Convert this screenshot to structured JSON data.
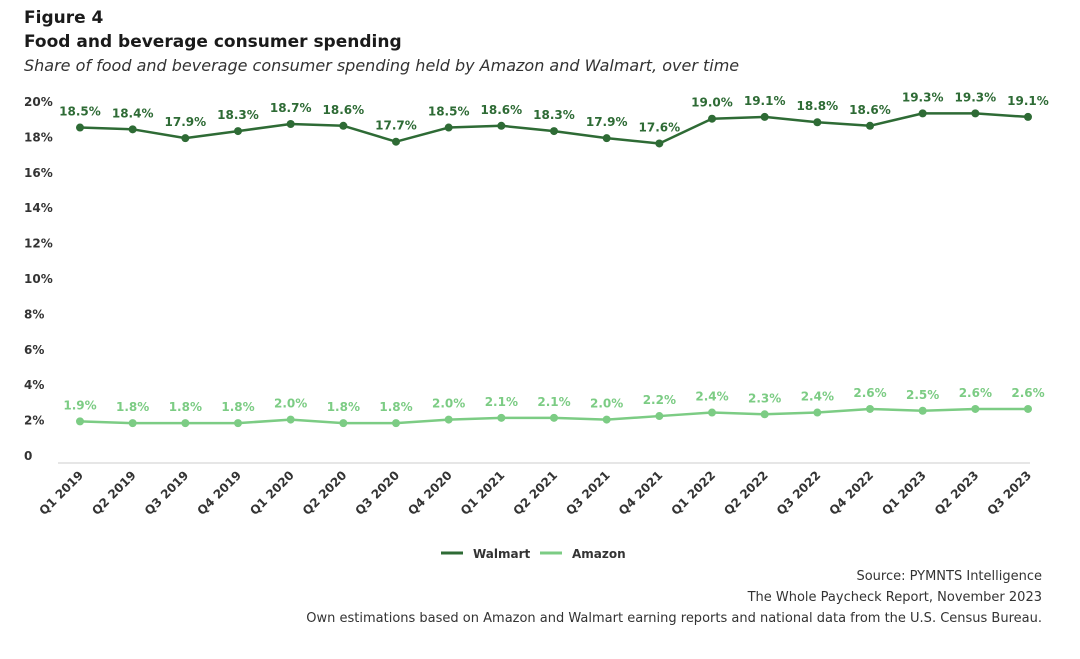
{
  "figure": {
    "label": "Figure 4",
    "title": "Food and beverage consumer spending",
    "subtitle": "Share of food and beverage consumer spending held by Amazon and Walmart, over time"
  },
  "footer": {
    "source": "Source: PYMNTS Intelligence",
    "report": "The Whole Paycheck Report, November 2023",
    "note": "Own estimations based on Amazon and Walmart earning reports and national data from the U.S. Census Bureau."
  },
  "colors": {
    "walmart": "#2e6b35",
    "amazon": "#7ccc84",
    "axis": "#cccccc",
    "tick_text": "#333333"
  },
  "chart_data": {
    "type": "line",
    "title": "Food and beverage consumer spending",
    "xlabel": "",
    "ylabel": "",
    "ylim": [
      0,
      20
    ],
    "yticks": [
      0,
      2,
      4,
      6,
      8,
      10,
      12,
      14,
      16,
      18,
      20
    ],
    "ytick_labels": [
      "0",
      "2%",
      "4%",
      "6%",
      "8%",
      "10%",
      "12%",
      "14%",
      "16%",
      "18%",
      "20%"
    ],
    "categories": [
      "Q1 2019",
      "Q2 2019",
      "Q3 2019",
      "Q4 2019",
      "Q1 2020",
      "Q2 2020",
      "Q3 2020",
      "Q4 2020",
      "Q1 2021",
      "Q2 2021",
      "Q3 2021",
      "Q4 2021",
      "Q1 2022",
      "Q2 2022",
      "Q3 2022",
      "Q4 2022",
      "Q1 2023",
      "Q2 2023",
      "Q3 2023"
    ],
    "legend_position": "bottom-center",
    "series": [
      {
        "name": "Walmart",
        "color_key": "walmart",
        "values": [
          18.5,
          18.4,
          17.9,
          18.3,
          18.7,
          18.6,
          17.7,
          18.5,
          18.6,
          18.3,
          17.9,
          17.6,
          19.0,
          19.1,
          18.8,
          18.6,
          19.3,
          19.3,
          19.1
        ],
        "labels": [
          "18.5%",
          "18.4%",
          "17.9%",
          "18.3%",
          "18.7%",
          "18.6%",
          "17.7%",
          "18.5%",
          "18.6%",
          "18.3%",
          "17.9%",
          "17.6%",
          "19.0%",
          "19.1%",
          "18.8%",
          "18.6%",
          "19.3%",
          "19.3%",
          "19.1%"
        ]
      },
      {
        "name": "Amazon",
        "color_key": "amazon",
        "values": [
          1.9,
          1.8,
          1.8,
          1.8,
          2.0,
          1.8,
          1.8,
          2.0,
          2.1,
          2.1,
          2.0,
          2.2,
          2.4,
          2.3,
          2.4,
          2.6,
          2.5,
          2.6,
          2.6
        ],
        "labels": [
          "1.9%",
          "1.8%",
          "1.8%",
          "1.8%",
          "2.0%",
          "1.8%",
          "1.8%",
          "2.0%",
          "2.1%",
          "2.1%",
          "2.0%",
          "2.2%",
          "2.4%",
          "2.3%",
          "2.4%",
          "2.6%",
          "2.5%",
          "2.6%",
          "2.6%"
        ]
      }
    ]
  }
}
